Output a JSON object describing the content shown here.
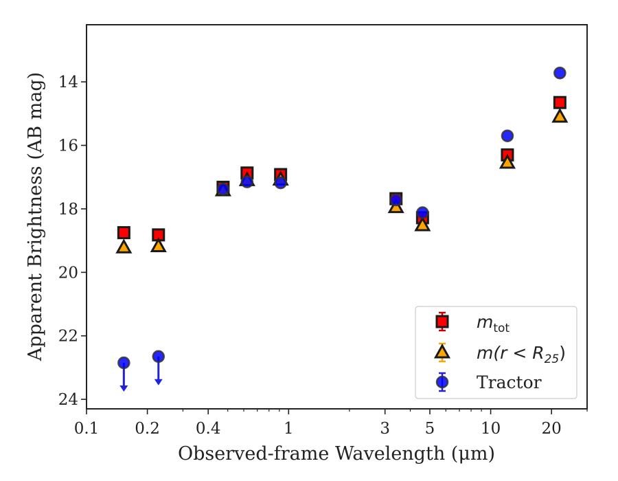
{
  "chart_data": {
    "type": "scatter",
    "xlabel": "Observed-frame Wavelength (μm)",
    "ylabel": "Apparent Brightness (AB mag)",
    "xscale": "log",
    "xlim": [
      0.1,
      30
    ],
    "ylim": [
      24.3,
      12.2
    ],
    "y_inverted": true,
    "x_ticks": [
      {
        "value": 0.1,
        "label": "0.1"
      },
      {
        "value": 0.2,
        "label": "0.2"
      },
      {
        "value": 0.4,
        "label": "0.4"
      },
      {
        "value": 1,
        "label": "1"
      },
      {
        "value": 3,
        "label": "3"
      },
      {
        "value": 5,
        "label": "5"
      },
      {
        "value": 10,
        "label": "10"
      },
      {
        "value": 20,
        "label": "20"
      }
    ],
    "y_ticks": [
      {
        "value": 14,
        "label": "14"
      },
      {
        "value": 16,
        "label": "16"
      },
      {
        "value": 18,
        "label": "18"
      },
      {
        "value": 20,
        "label": "20"
      },
      {
        "value": 22,
        "label": "22"
      },
      {
        "value": 24,
        "label": "24"
      }
    ],
    "grid": false,
    "legend_position": "bottom-right",
    "series": [
      {
        "name": "m_tot",
        "legend_main": "m",
        "legend_sub": "tot",
        "marker": "square",
        "color": "#ff0000",
        "edge_color": "#1a1a1a",
        "errorbar_color": "#cc0000",
        "points": [
          {
            "x": 0.153,
            "y": 18.75
          },
          {
            "x": 0.227,
            "y": 18.82
          },
          {
            "x": 0.474,
            "y": 17.32
          },
          {
            "x": 0.623,
            "y": 16.87
          },
          {
            "x": 0.913,
            "y": 16.92
          },
          {
            "x": 3.4,
            "y": 17.68
          },
          {
            "x": 4.6,
            "y": 18.28
          },
          {
            "x": 12.1,
            "y": 16.3
          },
          {
            "x": 22.0,
            "y": 14.65
          }
        ]
      },
      {
        "name": "m(r < R25)",
        "legend_main": "m(r < R",
        "legend_sub": "25",
        "legend_close": ")",
        "marker": "triangle",
        "color": "#ffa500",
        "edge_color": "#1a1a1a",
        "errorbar_color": "#ffa500",
        "points": [
          {
            "x": 0.153,
            "y": 19.22
          },
          {
            "x": 0.227,
            "y": 19.18
          },
          {
            "x": 0.474,
            "y": 17.42
          },
          {
            "x": 0.623,
            "y": 17.1
          },
          {
            "x": 0.913,
            "y": 17.08
          },
          {
            "x": 3.4,
            "y": 17.95
          },
          {
            "x": 4.6,
            "y": 18.52
          },
          {
            "x": 12.1,
            "y": 16.55
          },
          {
            "x": 22.0,
            "y": 15.1
          }
        ]
      },
      {
        "name": "Tractor",
        "legend_main": "Tractor",
        "marker": "circle",
        "color": "#0000ff",
        "edge_color": "#333333",
        "errorbar_color": "#2222dd",
        "points": [
          {
            "x": 0.153,
            "y": 22.85,
            "upper_limit": true
          },
          {
            "x": 0.227,
            "y": 22.65,
            "upper_limit": true
          },
          {
            "x": 0.474,
            "y": 17.38
          },
          {
            "x": 0.623,
            "y": 17.15
          },
          {
            "x": 0.913,
            "y": 17.18
          },
          {
            "x": 3.4,
            "y": 17.72
          },
          {
            "x": 4.6,
            "y": 18.12
          },
          {
            "x": 12.1,
            "y": 15.7
          },
          {
            "x": 22.0,
            "y": 13.72
          }
        ]
      }
    ]
  }
}
